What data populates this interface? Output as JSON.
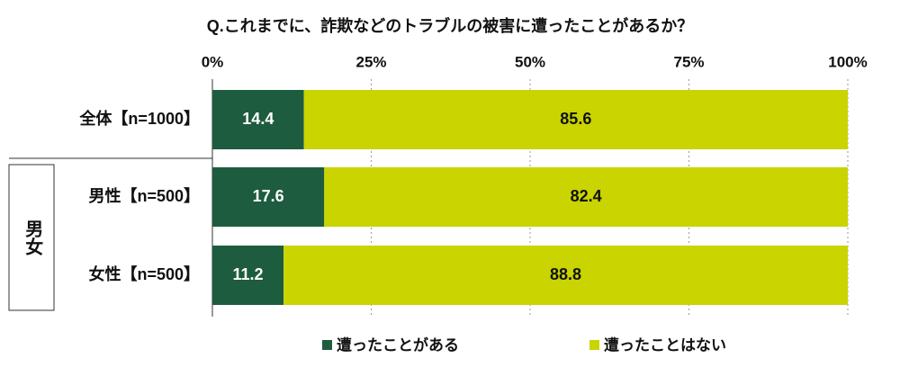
{
  "chart_data": {
    "type": "stacked-bar-horizontal",
    "title": "Q.これまでに、詐欺などのトラブルの被害に遭ったことがあるか？",
    "categories": [
      "全体【n=1000】",
      "男性【n=500】",
      "女性【n=500】"
    ],
    "group_label": "男女",
    "series": [
      {
        "name": "遭ったことがある",
        "color": "#1d5c3e",
        "values": [
          14.4,
          17.6,
          11.2
        ]
      },
      {
        "name": "遭ったことはない",
        "color": "#c9d400",
        "values": [
          85.6,
          82.4,
          88.8
        ]
      }
    ],
    "xlim": [
      0,
      100
    ],
    "xticks": [
      {
        "value": 0,
        "label": "0%"
      },
      {
        "value": 25,
        "label": "25%"
      },
      {
        "value": 50,
        "label": "50%"
      },
      {
        "value": 75,
        "label": "75%"
      },
      {
        "value": 100,
        "label": "100%"
      }
    ],
    "grid": true,
    "legend": "bottom"
  }
}
